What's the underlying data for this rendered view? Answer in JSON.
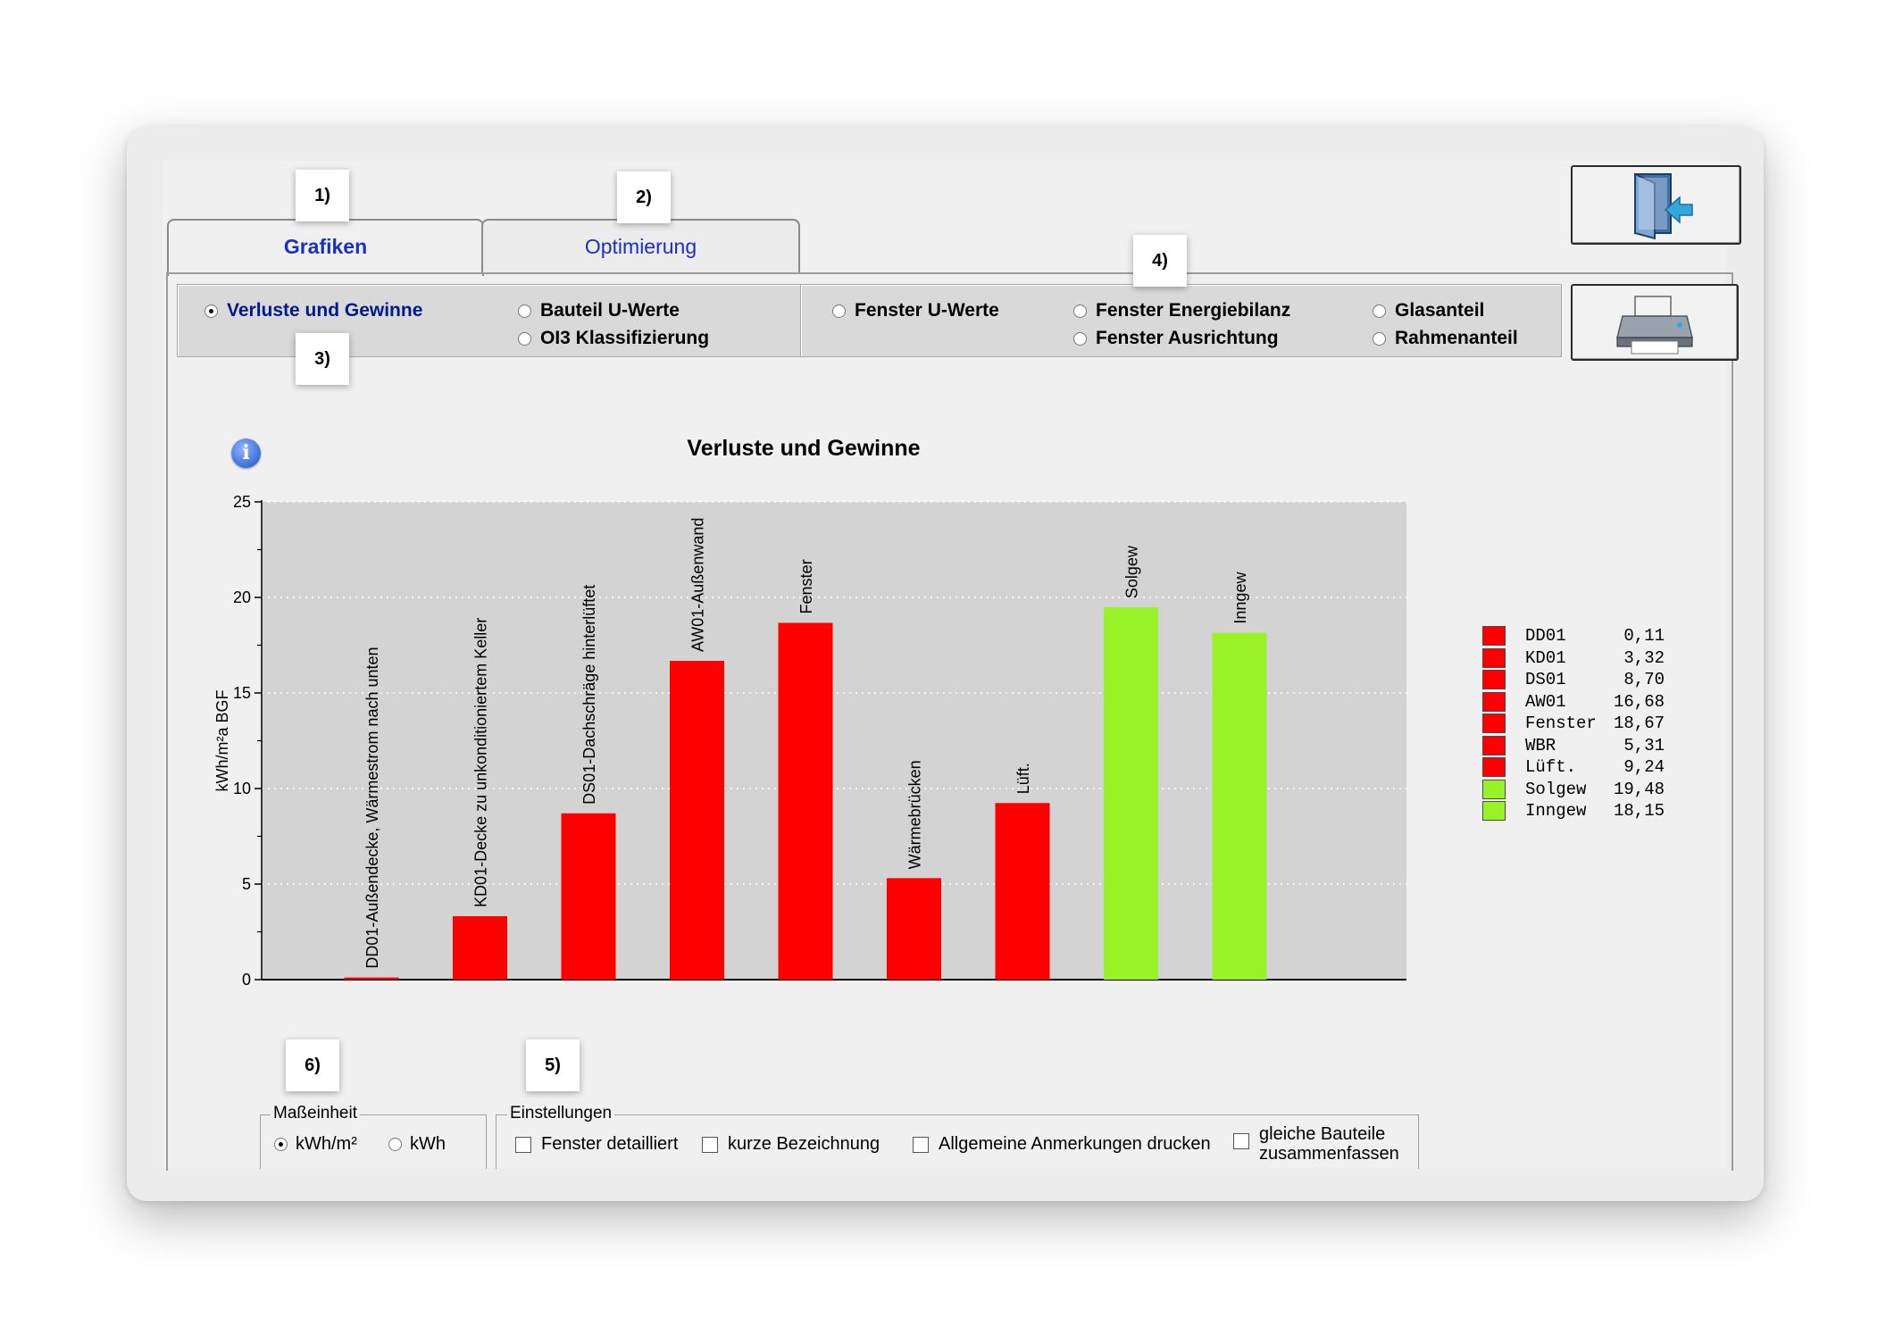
{
  "tabs": [
    {
      "label": "Grafiken",
      "active": true
    },
    {
      "label": "Optimierung",
      "active": false
    }
  ],
  "callouts": [
    "1)",
    "2)",
    "3)",
    "4)",
    "5)",
    "6)"
  ],
  "icons": {
    "exit": "exit-door-icon",
    "print": "printer-icon",
    "info": "info-icon"
  },
  "options_left": [
    {
      "label": "Verluste und Gewinne",
      "selected": true
    },
    {
      "label": "Bauteil U-Werte",
      "selected": false
    },
    {
      "label": "OI3 Klassifizierung",
      "selected": false
    }
  ],
  "options_right": [
    {
      "label": "Fenster U-Werte",
      "selected": false
    },
    {
      "label": "Fenster Energiebilanz",
      "selected": false
    },
    {
      "label": "Fenster Ausrichtung",
      "selected": false
    },
    {
      "label": "Glasanteil",
      "selected": false
    },
    {
      "label": "Rahmenanteil",
      "selected": false
    }
  ],
  "colors": {
    "loss": "#ff0000",
    "gain": "#99f227",
    "plot_bg": "#d3d3d3",
    "tab_text": "#1a2fc4"
  },
  "chart_data": {
    "type": "bar",
    "title": "Verluste und Gewinne",
    "ylabel": "kWh/m²a BGF",
    "ylim": [
      0,
      25
    ],
    "yticks": [
      "0",
      "5",
      "10",
      "15",
      "20",
      "25"
    ],
    "grid": true,
    "categories": [
      "DD01-Außendecke, Wärmestrom nach unten",
      "KD01-Decke zu unkonditioniertem Keller",
      "DS01-Dachschräge hinterlüftet",
      "AW01-Außenwand",
      "Fenster",
      "Wärmebrücken",
      "Lüft.",
      "Solgew",
      "Inngew"
    ],
    "values": [
      0.11,
      3.32,
      8.7,
      16.68,
      18.67,
      5.31,
      9.24,
      19.48,
      18.15
    ],
    "kinds": [
      "loss",
      "loss",
      "loss",
      "loss",
      "loss",
      "loss",
      "loss",
      "gain",
      "gain"
    ],
    "legend": [
      {
        "name": "DD01",
        "value": "0,11",
        "kind": "loss"
      },
      {
        "name": "KD01",
        "value": "3,32",
        "kind": "loss"
      },
      {
        "name": "DS01",
        "value": "8,70",
        "kind": "loss"
      },
      {
        "name": "AW01",
        "value": "16,68",
        "kind": "loss"
      },
      {
        "name": "Fenster",
        "value": "18,67",
        "kind": "loss"
      },
      {
        "name": "WBR",
        "value": "5,31",
        "kind": "loss"
      },
      {
        "name": "Lüft.",
        "value": "9,24",
        "kind": "loss"
      },
      {
        "name": "Solgew",
        "value": "19,48",
        "kind": "gain"
      },
      {
        "name": "Inngew",
        "value": "18,15",
        "kind": "gain"
      }
    ],
    "legend_position": "right"
  },
  "unit_group": {
    "title": "Maßeinheit",
    "options": [
      {
        "label": "kWh/m²",
        "selected": true
      },
      {
        "label": "kWh",
        "selected": false
      }
    ]
  },
  "settings_group": {
    "title": "Einstellungen",
    "checkboxes": [
      {
        "label": "Fenster detailliert",
        "checked": false
      },
      {
        "label": "kurze Bezeichnung",
        "checked": false
      },
      {
        "label": "Allgemeine Anmerkungen drucken",
        "checked": false
      },
      {
        "label_line1": "gleiche Bauteile",
        "label_line2": "zusammenfassen",
        "checked": false
      }
    ]
  }
}
